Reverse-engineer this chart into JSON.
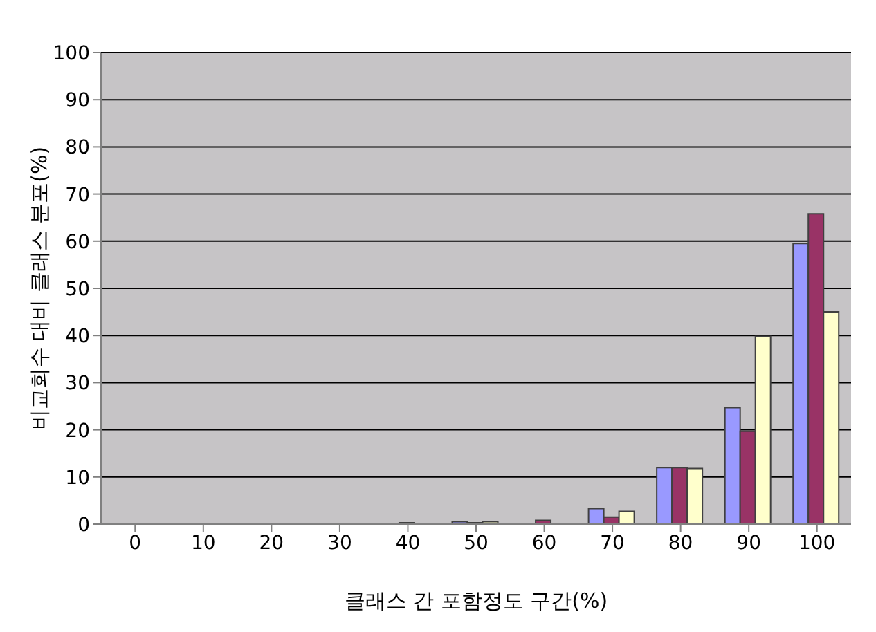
{
  "chart_data": {
    "type": "bar",
    "xlabel": "클래스 간 포함정도 구간(%)",
    "ylabel": "비교회수 대비 클래스 분포(%)",
    "categories": [
      "0",
      "10",
      "20",
      "30",
      "40",
      "50",
      "60",
      "70",
      "80",
      "90",
      "100"
    ],
    "series": [
      {
        "color": "#9999ff",
        "values": [
          0,
          0,
          0,
          0,
          0,
          0.5,
          0,
          3.3,
          12,
          24.7,
          59.5
        ]
      },
      {
        "color": "#993366",
        "values": [
          0,
          0,
          0,
          0,
          0.3,
          0.3,
          0.8,
          1.5,
          12,
          19.7,
          65.8
        ]
      },
      {
        "color": "#ffffcc",
        "values": [
          0,
          0,
          0,
          0,
          0,
          0.5,
          0,
          2.7,
          11.8,
          39.8,
          45
        ]
      }
    ],
    "ylim": [
      0,
      100
    ],
    "yticks": [
      0,
      10,
      20,
      30,
      40,
      50,
      60,
      70,
      80,
      90,
      100
    ],
    "grid": "y",
    "legend": false
  }
}
